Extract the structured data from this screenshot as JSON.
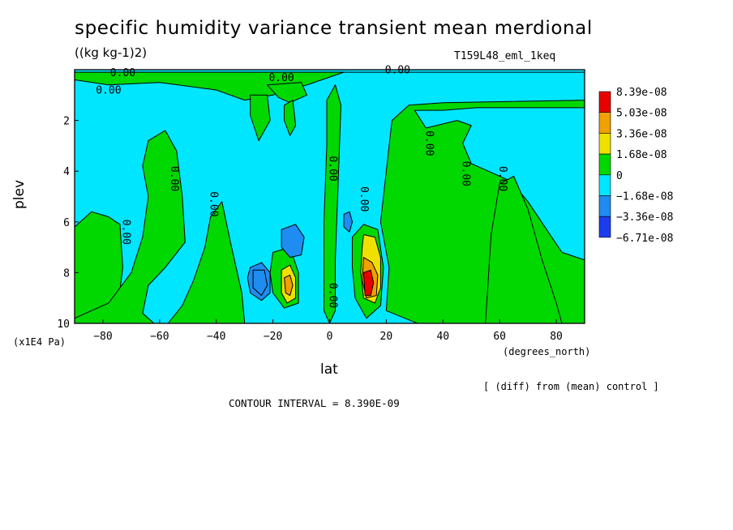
{
  "chart_data": {
    "type": "heatmap",
    "title": "specific humidity variance transient mean merdional",
    "units": "((kg kg-1)2)",
    "run_label": "T159L48_eml_1keq",
    "xlabel": "lat",
    "xunits": "(degrees_north)",
    "ylabel": "plev",
    "yunits": "(x1E4 Pa)",
    "note": "[ (diff) from (mean) control ]",
    "contour_interval": "CONTOUR INTERVAL = 8.390E-09",
    "xlim": [
      -90,
      90
    ],
    "ylim": [
      10,
      0
    ],
    "x_ticks": [
      -80,
      -60,
      -40,
      -20,
      0,
      20,
      40,
      60,
      80
    ],
    "x_tick_labels": [
      "−80",
      "−60",
      "−40",
      "−20",
      "0",
      "20",
      "40",
      "60",
      "80"
    ],
    "y_ticks": [
      2,
      4,
      6,
      8,
      10
    ],
    "y_tick_labels": [
      "2",
      "4",
      "6",
      "8",
      "10"
    ],
    "contour_labels": [
      {
        "text": "0.00",
        "lat": -73,
        "plev": 0.25
      },
      {
        "text": "0.00",
        "lat": -78,
        "plev": 0.95
      },
      {
        "text": "0.00",
        "lat": -17,
        "plev": 0.45
      },
      {
        "text": "0.00",
        "lat": 24,
        "plev": 0.15
      },
      {
        "text": "0.00",
        "lat": -56,
        "plev": 4.3
      },
      {
        "text": "0.00",
        "lat": -42,
        "plev": 5.3
      },
      {
        "text": "0.00",
        "lat": -73,
        "plev": 6.4
      },
      {
        "text": "0.00",
        "lat": 0,
        "plev": 3.9
      },
      {
        "text": "0.00",
        "lat": 11,
        "plev": 5.1
      },
      {
        "text": "0.00",
        "lat": 34,
        "plev": 2.9
      },
      {
        "text": "0.00",
        "lat": 47,
        "plev": 4.1
      },
      {
        "text": "0.00",
        "lat": 60,
        "plev": 4.3
      },
      {
        "text": "0.00",
        "lat": 0,
        "plev": 8.9
      }
    ],
    "legend": {
      "levels": [
        "8.39e-08",
        "5.03e-08",
        "3.36e-08",
        "1.68e-08",
        "0",
        "−1.68e-08",
        "−3.36e-08",
        "−6.71e-08"
      ],
      "colors": [
        "#e80000",
        "#f0a000",
        "#f0e000",
        "#00d800",
        "#00e6ff",
        "#1e8cf0",
        "#1c3cf0"
      ]
    },
    "background_color": "#00e6ff",
    "regions": [
      {
        "value_class": "0",
        "color": "#00d800",
        "polygon": [
          [
            -90,
            0.1
          ],
          [
            90,
            0.1
          ],
          [
            90,
            1.2
          ],
          [
            40,
            1.3
          ],
          [
            28,
            1.4
          ],
          [
            22,
            2.0
          ],
          [
            20,
            4.0
          ],
          [
            18,
            6.0
          ],
          [
            21,
            7.8
          ],
          [
            20,
            9.5
          ],
          [
            31,
            10
          ],
          [
            90,
            10
          ],
          [
            90,
            7.5
          ],
          [
            82,
            7.2
          ],
          [
            70,
            5.2
          ],
          [
            64,
            4.4
          ],
          [
            56,
            4.0
          ],
          [
            50,
            3.7
          ],
          [
            47,
            2.9
          ],
          [
            50,
            2.2
          ],
          [
            45,
            2.0
          ],
          [
            34,
            2.3
          ],
          [
            30,
            1.6
          ],
          [
            40,
            1.6
          ],
          [
            52,
            1.5
          ],
          [
            90,
            1.5
          ],
          [
            90,
            0.1
          ]
        ]
      },
      {
        "value_class": "0",
        "color": "#00d800",
        "polygon": [
          [
            -78,
            0.6
          ],
          [
            -60,
            0.5
          ],
          [
            -40,
            0.8
          ],
          [
            -30,
            1.2
          ],
          [
            -20,
            1.0
          ],
          [
            -8,
            0.6
          ],
          [
            5,
            0.1
          ],
          [
            -90,
            0.1
          ],
          [
            -90,
            0.4
          ]
        ]
      },
      {
        "value_class": "0",
        "color": "#00d800",
        "polygon": [
          [
            -90,
            6.2
          ],
          [
            -84,
            5.6
          ],
          [
            -78,
            5.8
          ],
          [
            -74,
            6.1
          ],
          [
            -73,
            7.8
          ],
          [
            -75,
            9.6
          ],
          [
            -73,
            10
          ],
          [
            -90,
            10
          ]
        ]
      },
      {
        "value_class": "0",
        "color": "#00d800",
        "polygon": [
          [
            -64,
            2.8
          ],
          [
            -58,
            2.4
          ],
          [
            -54,
            3.2
          ],
          [
            -52,
            5.0
          ],
          [
            -51,
            6.8
          ],
          [
            -58,
            7.8
          ],
          [
            -64,
            8.5
          ],
          [
            -66,
            9.6
          ],
          [
            -62,
            10
          ],
          [
            -57,
            10
          ],
          [
            -52,
            9.3
          ],
          [
            -48,
            8.3
          ],
          [
            -44,
            7.0
          ],
          [
            -42,
            5.8
          ],
          [
            -38,
            5.2
          ],
          [
            -35,
            6.8
          ],
          [
            -31,
            8.8
          ],
          [
            -30,
            10
          ],
          [
            -90,
            10
          ],
          [
            -90,
            9.8
          ],
          [
            -78,
            9.2
          ],
          [
            -70,
            8.0
          ],
          [
            -66,
            6.6
          ],
          [
            -64,
            5.0
          ],
          [
            -66,
            3.8
          ]
        ]
      },
      {
        "value_class": "0",
        "color": "#00d800",
        "polygon": [
          [
            -1,
            1.2
          ],
          [
            2,
            0.6
          ],
          [
            4,
            1.4
          ],
          [
            3,
            4.5
          ],
          [
            2,
            7.5
          ],
          [
            2,
            9.5
          ],
          [
            0,
            10
          ],
          [
            -2,
            9.5
          ],
          [
            -2,
            6.0
          ],
          [
            -1,
            3.0
          ]
        ]
      },
      {
        "value_class": "0",
        "color": "#00d800",
        "polygon": [
          [
            8,
            6.6
          ],
          [
            12,
            6.1
          ],
          [
            17,
            6.3
          ],
          [
            19,
            7.8
          ],
          [
            18,
            9.3
          ],
          [
            13,
            9.8
          ],
          [
            9,
            9.0
          ],
          [
            8,
            7.8
          ]
        ]
      },
      {
        "value_class": "0",
        "color": "#00d800",
        "polygon": [
          [
            -20,
            7.2
          ],
          [
            -14,
            7.0
          ],
          [
            -11,
            8.0
          ],
          [
            -11,
            9.2
          ],
          [
            -16,
            9.4
          ],
          [
            -20,
            8.8
          ],
          [
            -21,
            8.0
          ]
        ]
      },
      {
        "value_class": "0",
        "color": "#00d800",
        "polygon": [
          [
            55,
            10
          ],
          [
            57,
            6.5
          ],
          [
            60,
            4.5
          ],
          [
            65,
            4.2
          ],
          [
            70,
            5.5
          ],
          [
            75,
            7.5
          ],
          [
            80,
            9.2
          ],
          [
            82,
            10
          ]
        ]
      },
      {
        "value_class": "0",
        "color": "#00d800",
        "polygon": [
          [
            -22,
            0.6
          ],
          [
            -10,
            0.5
          ],
          [
            -8,
            1.0
          ],
          [
            -14,
            1.3
          ],
          [
            -18,
            1.1
          ]
        ]
      },
      {
        "value_class": "0",
        "color": "#00d800",
        "polygon": [
          [
            -16,
            1.4
          ],
          [
            -13,
            1.2
          ],
          [
            -12,
            2.2
          ],
          [
            -14,
            2.6
          ],
          [
            -16,
            2.0
          ]
        ]
      },
      {
        "value_class": "0",
        "color": "#00d800",
        "polygon": [
          [
            -28,
            1.0
          ],
          [
            -22,
            1.0
          ],
          [
            -21,
            2.0
          ],
          [
            -25,
            2.8
          ],
          [
            -28,
            1.8
          ]
        ]
      },
      {
        "value_class": "−1.68e-08",
        "color": "#1e8cf0",
        "polygon": [
          [
            -28,
            7.8
          ],
          [
            -24,
            7.6
          ],
          [
            -21,
            8.0
          ],
          [
            -21,
            8.8
          ],
          [
            -24,
            9.1
          ],
          [
            -28,
            8.8
          ],
          [
            -29,
            8.2
          ]
        ]
      },
      {
        "value_class": "−1.68e-08",
        "color": "#1e8cf0",
        "polygon": [
          [
            -17,
            6.3
          ],
          [
            -12,
            6.1
          ],
          [
            -9,
            6.6
          ],
          [
            -10,
            7.3
          ],
          [
            -14,
            7.4
          ],
          [
            -17,
            7.0
          ]
        ]
      },
      {
        "value_class": "−1.68e-08",
        "color": "#1e8cf0",
        "polygon": [
          [
            5,
            5.7
          ],
          [
            7,
            5.6
          ],
          [
            8,
            6.0
          ],
          [
            7,
            6.4
          ],
          [
            5,
            6.2
          ]
        ]
      },
      {
        "value_class": "−1.68e-08",
        "color": "#1e8cf0",
        "polygon": [
          [
            -27,
            7.9
          ],
          [
            -23,
            7.9
          ],
          [
            -22,
            8.5
          ],
          [
            -24,
            8.9
          ],
          [
            -27,
            8.6
          ]
        ]
      },
      {
        "value_class": "1.68e-08",
        "color": "#f0e000",
        "polygon": [
          [
            -17,
            7.9
          ],
          [
            -14,
            7.7
          ],
          [
            -12,
            8.2
          ],
          [
            -12,
            9.0
          ],
          [
            -15,
            9.2
          ],
          [
            -17,
            8.8
          ]
        ]
      },
      {
        "value_class": "3.36e-08",
        "color": "#f0a000",
        "polygon": [
          [
            -16,
            8.2
          ],
          [
            -14,
            8.1
          ],
          [
            -13,
            8.5
          ],
          [
            -14,
            8.9
          ],
          [
            -15.5,
            8.8
          ]
        ]
      },
      {
        "value_class": "1.68e-08",
        "color": "#f0e000",
        "polygon": [
          [
            12,
            6.5
          ],
          [
            16,
            6.6
          ],
          [
            18,
            7.4
          ],
          [
            18,
            8.6
          ],
          [
            16,
            9.2
          ],
          [
            12,
            9.0
          ],
          [
            11,
            8.0
          ],
          [
            11.5,
            7.0
          ]
        ]
      },
      {
        "value_class": "3.36e-08",
        "color": "#f0a000",
        "polygon": [
          [
            12,
            7.4
          ],
          [
            15,
            7.6
          ],
          [
            17,
            8.1
          ],
          [
            16.5,
            8.9
          ],
          [
            13,
            9.0
          ],
          [
            11.5,
            8.3
          ]
        ]
      },
      {
        "value_class": "5.03e-08",
        "color": "#e80000",
        "polygon": [
          [
            12,
            8.0
          ],
          [
            14.5,
            7.9
          ],
          [
            15.5,
            8.4
          ],
          [
            14.5,
            8.9
          ],
          [
            12.5,
            8.9
          ]
        ]
      }
    ]
  }
}
